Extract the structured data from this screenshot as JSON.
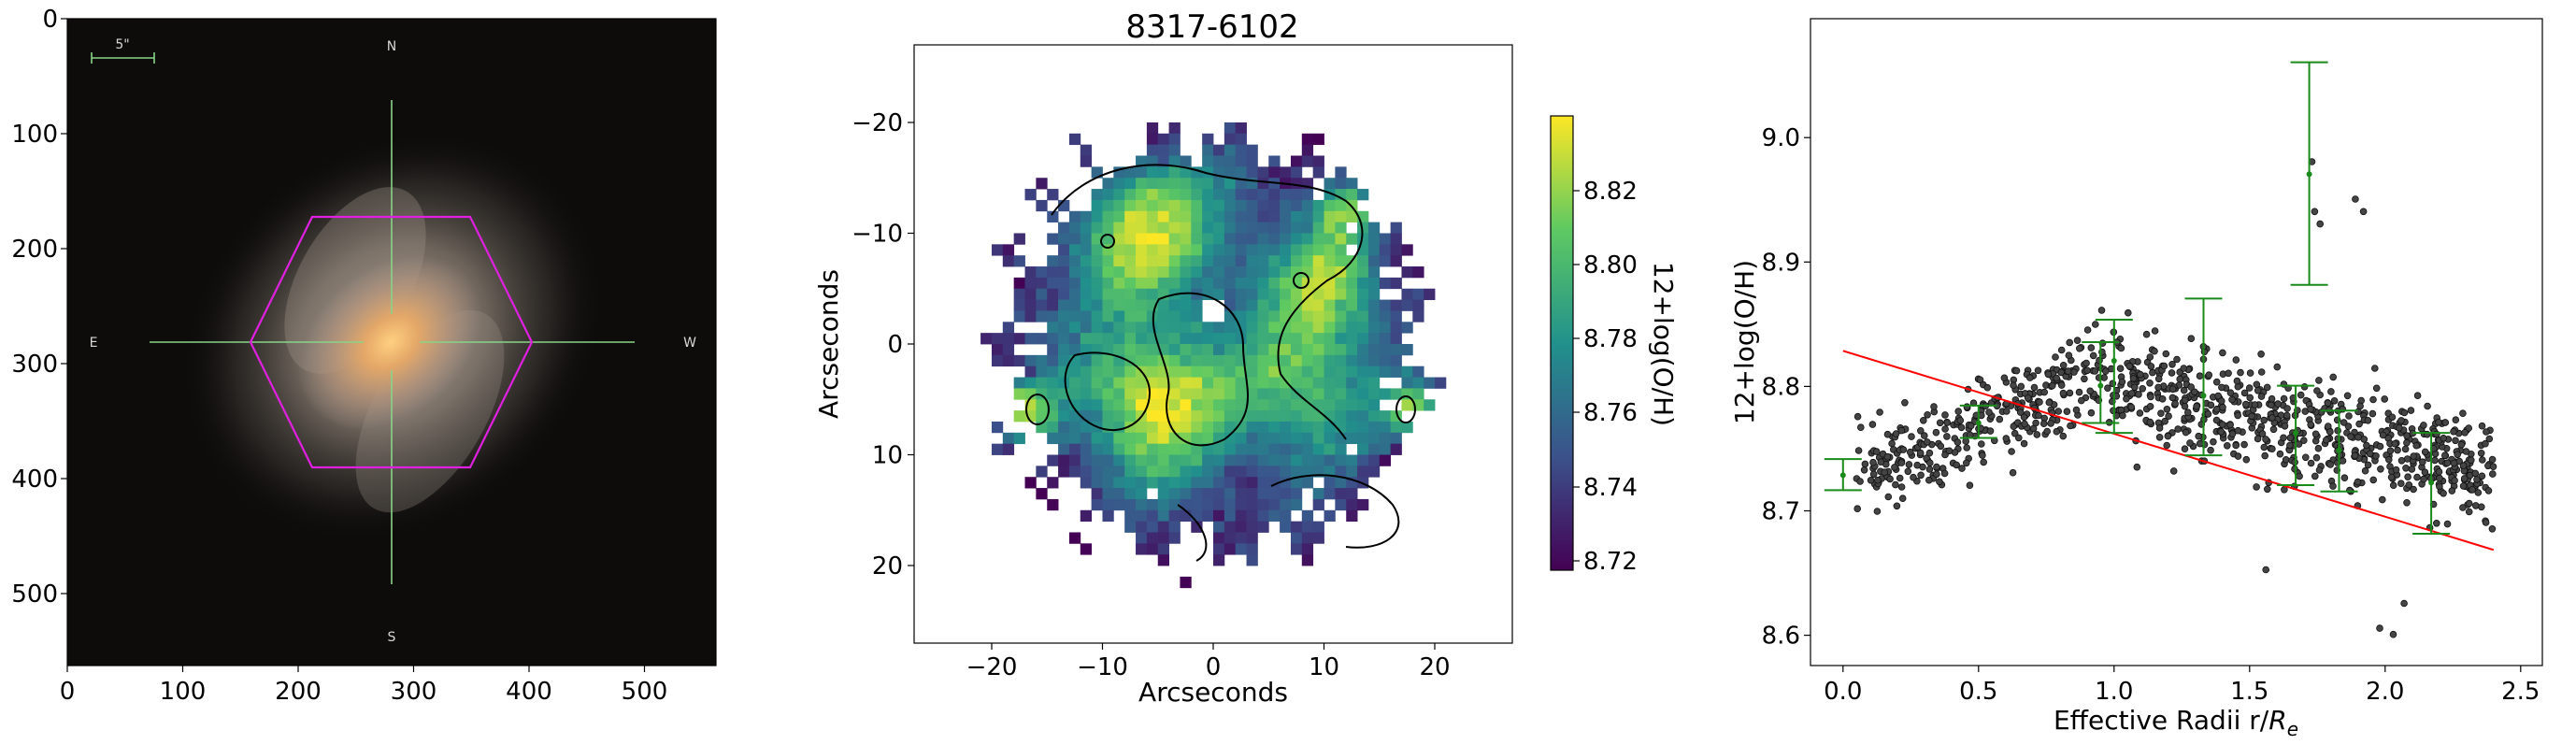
{
  "image_panel": {
    "xticks": [
      "0",
      "100",
      "200",
      "300",
      "400",
      "500"
    ],
    "yticks": [
      "0",
      "100",
      "200",
      "300",
      "400",
      "500"
    ],
    "compass": {
      "north": "N",
      "south": "S",
      "east": "E",
      "west": "W"
    },
    "scale_bar_label": "5\""
  },
  "map_panel": {
    "title": "8317-6102",
    "xlabel": "Arcseconds",
    "ylabel": "Arcseconds",
    "xticks": [
      "−20",
      "−10",
      "0",
      "10",
      "20"
    ],
    "yticks": [
      "−20",
      "−10",
      "0",
      "10",
      "20"
    ],
    "colorbar_label": "12+log(O/H)",
    "colorbar_ticks": [
      "8.82",
      "8.80",
      "8.78",
      "8.76",
      "8.74",
      "8.72"
    ],
    "colormap": [
      "#440154",
      "#3b528b",
      "#21918c",
      "#5ec962",
      "#fde725"
    ]
  },
  "chart_data": [
    {
      "type": "image",
      "xlim": [
        0,
        562
      ],
      "ylim": [
        562,
        0
      ],
      "xticks": [
        0,
        100,
        200,
        300,
        400,
        500
      ],
      "yticks": [
        0,
        100,
        200,
        300,
        400,
        500
      ]
    },
    {
      "type": "heatmap",
      "title": "8317-6102",
      "xlabel": "Arcseconds",
      "ylabel": "Arcseconds",
      "xlim": [
        -27,
        27
      ],
      "ylim": [
        27,
        -27
      ],
      "colorbar": {
        "label": "12+log(O/H)",
        "range": [
          8.715,
          8.835
        ],
        "ticks": [
          8.72,
          8.74,
          8.76,
          8.78,
          8.8,
          8.82
        ]
      }
    },
    {
      "type": "scatter",
      "xlabel": "Effective Radii r/Re",
      "ylabel": "12+log(O/H)",
      "xlim": [
        -0.12,
        2.58
      ],
      "ylim": [
        8.575,
        9.095
      ],
      "xticks": [
        "0.0",
        "0.5",
        "1.0",
        "1.5",
        "2.0",
        "2.5"
      ],
      "yticks": [
        "8.6",
        "8.7",
        "8.8",
        "8.9",
        "9.0"
      ],
      "fit_line": {
        "x": [
          0.0,
          2.4
        ],
        "y": [
          8.828,
          8.668
        ],
        "color": "#ff0000"
      },
      "binned_errorbars": [
        {
          "x": 0.0,
          "y": 8.728,
          "ylo": 8.716,
          "yhi": 8.741
        },
        {
          "x": 0.5,
          "y": 8.77,
          "ylo": 8.758,
          "yhi": 8.784
        },
        {
          "x": 0.95,
          "y": 8.8,
          "ylo": 8.77,
          "yhi": 8.835
        },
        {
          "x": 1.0,
          "y": 8.82,
          "ylo": 8.762,
          "yhi": 8.853
        },
        {
          "x": 1.33,
          "y": 8.792,
          "ylo": 8.744,
          "yhi": 8.87
        },
        {
          "x": 1.67,
          "y": 8.762,
          "ylo": 8.72,
          "yhi": 8.8
        },
        {
          "x": 1.72,
          "y": 8.97,
          "ylo": 8.881,
          "yhi": 9.06
        },
        {
          "x": 1.83,
          "y": 8.748,
          "ylo": 8.715,
          "yhi": 8.78
        },
        {
          "x": 2.17,
          "y": 8.722,
          "ylo": 8.681,
          "yhi": 8.762
        }
      ],
      "errorbar_color": "#1a8a1a",
      "point_color": "#444444",
      "n_points": 1000
    }
  ],
  "scatter_panel": {
    "xlabel": "Effective Radii r/",
    "xlabel_sym": "R",
    "xlabel_sub": "e",
    "ylabel": "12+log(O/H)",
    "xticks": [
      "0.0",
      "0.5",
      "1.0",
      "1.5",
      "2.0",
      "2.5"
    ],
    "yticks": [
      "8.6",
      "8.7",
      "8.8",
      "8.9",
      "9.0"
    ]
  }
}
